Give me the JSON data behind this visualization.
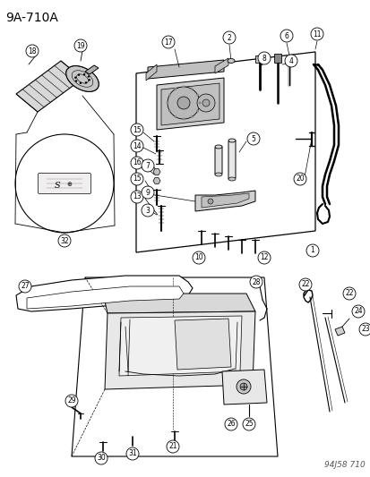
{
  "title": "9A-710A",
  "footnote": "94J58 710",
  "bg_color": "#ffffff",
  "fg_color": "#000000",
  "title_fontsize": 10,
  "footnote_fontsize": 6.5,
  "fig_width": 4.14,
  "fig_height": 5.33,
  "dpi": 100
}
